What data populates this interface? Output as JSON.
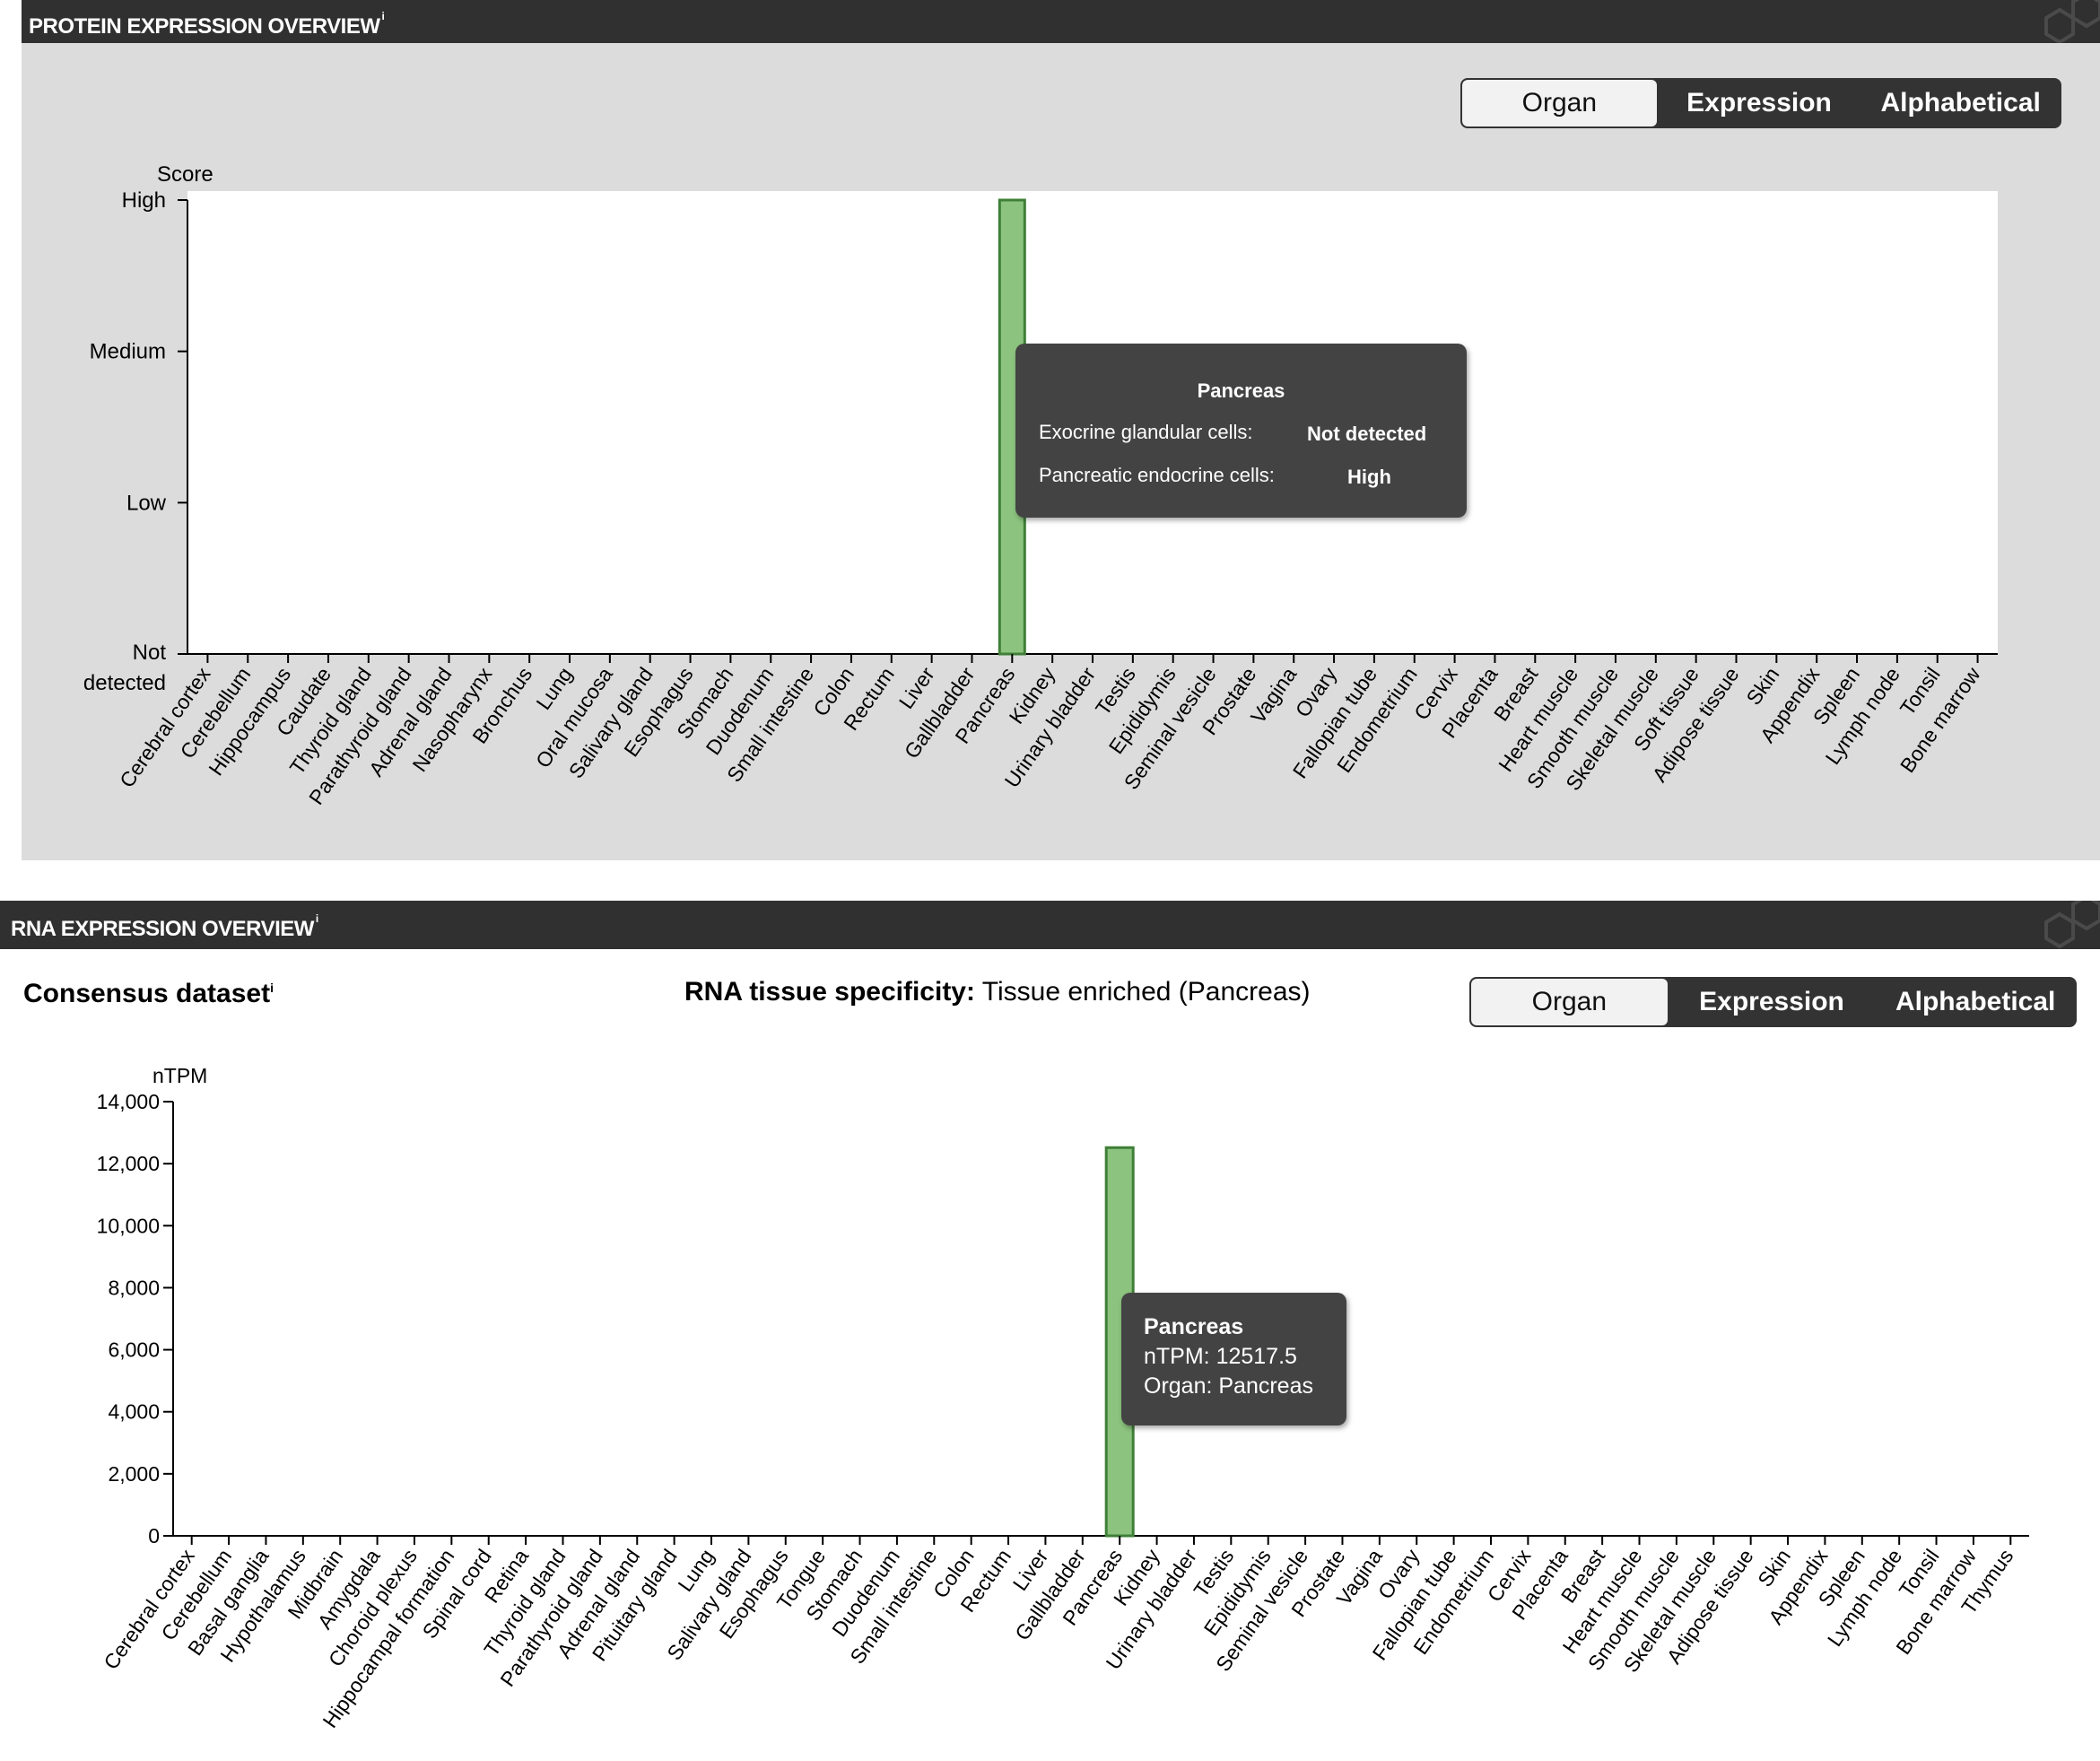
{
  "protein": {
    "header": "PROTEIN EXPRESSION OVERVIEW",
    "header_sup": "i",
    "toggle": [
      "Organ",
      "Expression",
      "Alphabetical"
    ],
    "tooltip": {
      "title": "Pancreas",
      "rows": [
        {
          "label": "Exocrine glandular cells:",
          "value": "Not detected"
        },
        {
          "label": "Pancreatic endocrine cells:",
          "value": "High"
        }
      ]
    }
  },
  "rna": {
    "header": "RNA EXPRESSION OVERVIEW",
    "header_sup": "i",
    "dataset_label": "Consensus dataset",
    "dataset_sup": "i",
    "specificity_label": "RNA tissue specificity:",
    "specificity_value": "Tissue enriched (Pancreas)",
    "toggle": [
      "Organ",
      "Expression",
      "Alphabetical"
    ],
    "tooltip": {
      "title": "Pancreas",
      "line1": "nTPM: 12517.5",
      "line2": "Organ: Pancreas"
    }
  },
  "colors": {
    "bar_fill": "#8cc47f",
    "bar_stroke": "#3f7f37",
    "header_bg": "#303030",
    "panel_bg": "#dcdcdc"
  },
  "chart_data": [
    {
      "type": "bar",
      "ylabel": "Score",
      "yticks": [
        "High",
        "Medium",
        "Low",
        "Not detected"
      ],
      "ylim": [
        "Not detected",
        "High"
      ],
      "categories": [
        "Cerebral cortex",
        "Cerebellum",
        "Hippocampus",
        "Caudate",
        "Thyroid gland",
        "Parathyroid gland",
        "Adrenal gland",
        "Nasopharynx",
        "Bronchus",
        "Lung",
        "Oral mucosa",
        "Salivary gland",
        "Esophagus",
        "Stomach",
        "Duodenum",
        "Small intestine",
        "Colon",
        "Rectum",
        "Liver",
        "Gallbladder",
        "Pancreas",
        "Kidney",
        "Urinary bladder",
        "Testis",
        "Epididymis",
        "Seminal vesicle",
        "Prostate",
        "Vagina",
        "Ovary",
        "Fallopian tube",
        "Endometrium",
        "Cervix",
        "Placenta",
        "Breast",
        "Heart muscle",
        "Smooth muscle",
        "Skeletal muscle",
        "Soft tissue",
        "Adipose tissue",
        "Skin",
        "Appendix",
        "Spleen",
        "Lymph node",
        "Tonsil",
        "Bone marrow"
      ],
      "values": [
        0,
        0,
        0,
        0,
        0,
        0,
        0,
        0,
        0,
        0,
        0,
        0,
        0,
        0,
        0,
        0,
        0,
        0,
        0,
        0,
        3,
        0,
        0,
        0,
        0,
        0,
        0,
        0,
        0,
        0,
        0,
        0,
        0,
        0,
        0,
        0,
        0,
        0,
        0,
        0,
        0,
        0,
        0,
        0,
        0
      ]
    },
    {
      "type": "bar",
      "ylabel": "nTPM",
      "ylim": [
        0,
        14000
      ],
      "yticks": [
        "0",
        "2,000",
        "4,000",
        "6,000",
        "8,000",
        "10,000",
        "12,000",
        "14,000"
      ],
      "categories": [
        "Cerebral cortex",
        "Cerebellum",
        "Basal ganglia",
        "Hypothalamus",
        "Midbrain",
        "Amygdala",
        "Choroid plexus",
        "Hippocampal formation",
        "Spinal cord",
        "Retina",
        "Thyroid gland",
        "Parathyroid gland",
        "Adrenal gland",
        "Pituitary gland",
        "Lung",
        "Salivary gland",
        "Esophagus",
        "Tongue",
        "Stomach",
        "Duodenum",
        "Small intestine",
        "Colon",
        "Rectum",
        "Liver",
        "Gallbladder",
        "Pancreas",
        "Kidney",
        "Urinary bladder",
        "Testis",
        "Epididymis",
        "Seminal vesicle",
        "Prostate",
        "Vagina",
        "Ovary",
        "Fallopian tube",
        "Endometrium",
        "Cervix",
        "Placenta",
        "Breast",
        "Heart muscle",
        "Smooth muscle",
        "Skeletal muscle",
        "Adipose tissue",
        "Skin",
        "Appendix",
        "Spleen",
        "Lymph node",
        "Tonsil",
        "Bone marrow",
        "Thymus"
      ],
      "values": [
        0,
        0,
        0,
        0,
        0,
        0,
        0,
        0,
        0,
        0,
        0,
        0,
        0,
        0,
        0,
        0,
        0,
        0,
        0,
        0,
        0,
        0,
        0,
        0,
        0,
        12517.5,
        0,
        0,
        0,
        0,
        0,
        0,
        0,
        0,
        0,
        0,
        0,
        0,
        0,
        0,
        0,
        0,
        0,
        0,
        0,
        0,
        0,
        0,
        0,
        0
      ]
    }
  ]
}
